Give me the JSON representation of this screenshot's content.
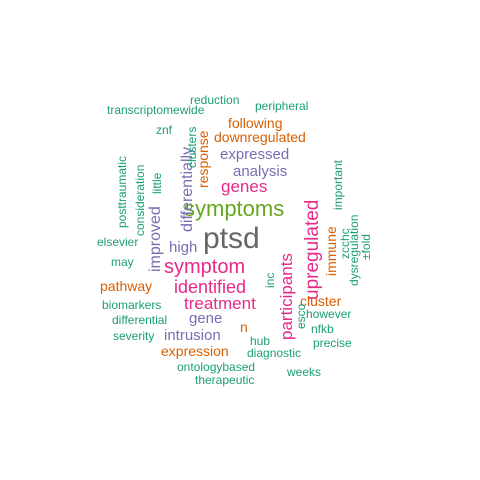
{
  "palette": {
    "green": "#1b9e77",
    "orange": "#d95f02",
    "purple": "#7570b3",
    "magenta": "#e7298a",
    "lime": "#66a61e",
    "gray": "#666666"
  },
  "words": [
    {
      "text": "ptsd",
      "color": "gray"
    },
    {
      "text": "symptoms",
      "color": "lime"
    },
    {
      "text": "symptom",
      "color": "magenta"
    },
    {
      "text": "upregulated",
      "color": "magenta"
    },
    {
      "text": "identified",
      "color": "magenta"
    },
    {
      "text": "participants",
      "color": "magenta"
    },
    {
      "text": "treatment",
      "color": "magenta"
    },
    {
      "text": "genes",
      "color": "magenta"
    },
    {
      "text": "differentially",
      "color": "purple"
    },
    {
      "text": "improved",
      "color": "purple"
    },
    {
      "text": "expressed",
      "color": "purple"
    },
    {
      "text": "analysis",
      "color": "purple"
    },
    {
      "text": "high",
      "color": "purple"
    },
    {
      "text": "intrusion",
      "color": "purple"
    },
    {
      "text": "gene",
      "color": "purple"
    },
    {
      "text": "response",
      "color": "orange"
    },
    {
      "text": "following",
      "color": "orange"
    },
    {
      "text": "downregulated",
      "color": "orange"
    },
    {
      "text": "immune",
      "color": "orange"
    },
    {
      "text": "pathway",
      "color": "orange"
    },
    {
      "text": "cluster",
      "color": "orange"
    },
    {
      "text": "expression",
      "color": "orange"
    },
    {
      "text": "n",
      "color": "orange"
    },
    {
      "text": "reduction",
      "color": "green"
    },
    {
      "text": "transcriptomewide",
      "color": "green"
    },
    {
      "text": "peripheral",
      "color": "green"
    },
    {
      "text": "znf",
      "color": "green"
    },
    {
      "text": "clusters",
      "color": "green"
    },
    {
      "text": "posttraumatic",
      "color": "green"
    },
    {
      "text": "consideration",
      "color": "green"
    },
    {
      "text": "little",
      "color": "green"
    },
    {
      "text": "important",
      "color": "green"
    },
    {
      "text": "dysregulation",
      "color": "green"
    },
    {
      "text": "zcchc",
      "color": "green"
    },
    {
      "text": "±fold",
      "color": "green"
    },
    {
      "text": "elsevier",
      "color": "green"
    },
    {
      "text": "may",
      "color": "green"
    },
    {
      "text": "inc",
      "color": "green"
    },
    {
      "text": "biomarkers",
      "color": "green"
    },
    {
      "text": "differential",
      "color": "green"
    },
    {
      "text": "severity",
      "color": "green"
    },
    {
      "text": "esco",
      "color": "green"
    },
    {
      "text": "however",
      "color": "green"
    },
    {
      "text": "nfkb",
      "color": "green"
    },
    {
      "text": "hub",
      "color": "green"
    },
    {
      "text": "precise",
      "color": "green"
    },
    {
      "text": "diagnostic",
      "color": "green"
    },
    {
      "text": "ontologybased",
      "color": "green"
    },
    {
      "text": "weeks",
      "color": "green"
    },
    {
      "text": "therapeutic",
      "color": "green"
    }
  ]
}
